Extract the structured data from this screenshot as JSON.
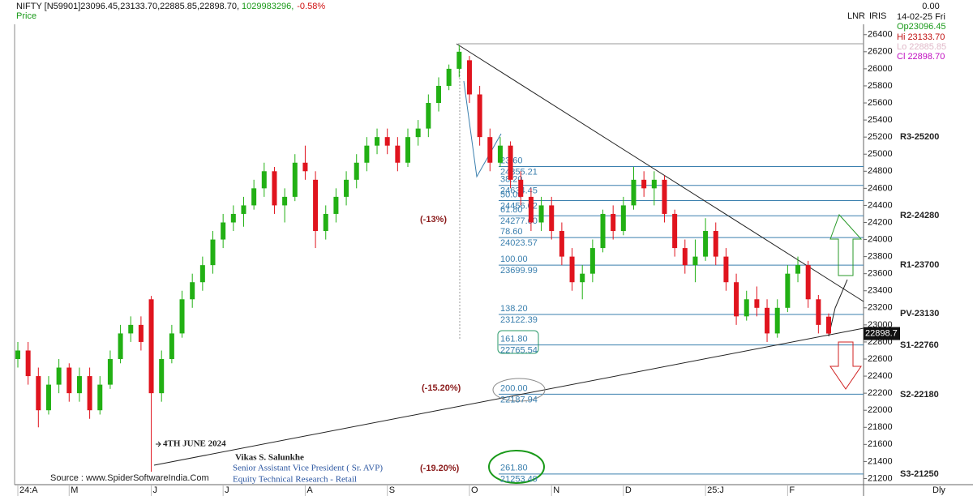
{
  "chart_data": {
    "type": "candlestick",
    "header": {
      "quote": "NIFTY [N59901]23096.45,23133.70,22885.85,22898.70,",
      "volume": "1029983296,",
      "change": "-0.58%",
      "sub": "Price"
    },
    "info": {
      "value": "0.00",
      "date": "14-02-25 Fri",
      "open": "Op23096.45",
      "high": "Hi 23133.70",
      "low": "Lo 22885.85",
      "close": "Cl 22898.70"
    },
    "axis_tags": [
      "LNR",
      "IRIS"
    ],
    "period": "Dly",
    "ylim": [
      21100,
      26730
    ],
    "yticks": [
      21200,
      21400,
      21600,
      21800,
      22000,
      22200,
      22400,
      22600,
      22800,
      23000,
      23200,
      23400,
      23600,
      23800,
      24000,
      24200,
      24400,
      24600,
      24800,
      25000,
      25200,
      25400,
      25600,
      25800,
      26000,
      26200,
      26400
    ],
    "categories": [
      "24:A",
      null,
      null,
      null,
      null,
      "M",
      null,
      null,
      null,
      null,
      null,
      null,
      null,
      "J",
      null,
      null,
      null,
      null,
      null,
      null,
      "J",
      null,
      null,
      null,
      null,
      null,
      null,
      null,
      "A",
      null,
      null,
      null,
      null,
      null,
      null,
      null,
      "S",
      null,
      null,
      null,
      null,
      null,
      null,
      null,
      "O",
      null,
      null,
      null,
      null,
      null,
      null,
      null,
      "N",
      null,
      null,
      null,
      null,
      null,
      null,
      "D",
      null,
      null,
      null,
      null,
      null,
      null,
      null,
      "25:J",
      null,
      null,
      null,
      null,
      null,
      null,
      null,
      "F",
      null,
      null,
      null,
      null
    ],
    "candles": [
      [
        22600,
        22800,
        22500,
        22700
      ],
      [
        22700,
        22800,
        22300,
        22400
      ],
      [
        22400,
        22500,
        21800,
        22000
      ],
      [
        22000,
        22400,
        21950,
        22300
      ],
      [
        22300,
        22600,
        22200,
        22500
      ],
      [
        22500,
        22550,
        22100,
        22200
      ],
      [
        22200,
        22500,
        22100,
        22400
      ],
      [
        22400,
        22500,
        21900,
        22000
      ],
      [
        22000,
        22400,
        21950,
        22300
      ],
      [
        22300,
        22700,
        22250,
        22600
      ],
      [
        22600,
        23000,
        22550,
        22900
      ],
      [
        22900,
        23100,
        22800,
        23000
      ],
      [
        23000,
        23100,
        22700,
        22800
      ],
      [
        23300,
        23340,
        21280,
        22200
      ],
      [
        22200,
        22700,
        22100,
        22600
      ],
      [
        22600,
        23000,
        22550,
        22900
      ],
      [
        22900,
        23400,
        22850,
        23300
      ],
      [
        23300,
        23600,
        23200,
        23500
      ],
      [
        23500,
        23800,
        23400,
        23700
      ],
      [
        23700,
        24100,
        23600,
        24000
      ],
      [
        24000,
        24300,
        23900,
        24200
      ],
      [
        24200,
        24400,
        24100,
        24300
      ],
      [
        24300,
        24500,
        24150,
        24400
      ],
      [
        24400,
        24700,
        24350,
        24600
      ],
      [
        24600,
        24900,
        24500,
        24800
      ],
      [
        24800,
        24850,
        24300,
        24400
      ],
      [
        24400,
        24600,
        24200,
        24500
      ],
      [
        24500,
        25000,
        24450,
        24900
      ],
      [
        24900,
        25100,
        24700,
        24800
      ],
      [
        24700,
        24800,
        23900,
        24100
      ],
      [
        24100,
        24400,
        24000,
        24300
      ],
      [
        24300,
        24600,
        24200,
        24500
      ],
      [
        24500,
        24800,
        24400,
        24700
      ],
      [
        24700,
        25000,
        24600,
        24900
      ],
      [
        24900,
        25200,
        24800,
        25100
      ],
      [
        25100,
        25300,
        25000,
        25200
      ],
      [
        25200,
        25300,
        25000,
        25100
      ],
      [
        25100,
        25200,
        24800,
        24900
      ],
      [
        24900,
        25300,
        24850,
        25200
      ],
      [
        25200,
        25400,
        25100,
        25300
      ],
      [
        25300,
        25700,
        25200,
        25600
      ],
      [
        25600,
        25900,
        25500,
        25800
      ],
      [
        25800,
        26050,
        25750,
        26000
      ],
      [
        26000,
        26280,
        25900,
        26200
      ],
      [
        26100,
        26150,
        25600,
        25700
      ],
      [
        25700,
        25800,
        25100,
        25200
      ],
      [
        25200,
        25300,
        24800,
        24900
      ],
      [
        24900,
        25200,
        24850,
        25100
      ],
      [
        25100,
        25150,
        24600,
        24700
      ],
      [
        24700,
        24800,
        24400,
        24500
      ],
      [
        24500,
        24600,
        24100,
        24200
      ],
      [
        24200,
        24500,
        24100,
        24400
      ],
      [
        24400,
        24500,
        24000,
        24100
      ],
      [
        24100,
        24200,
        23700,
        23800
      ],
      [
        23800,
        23900,
        23400,
        23500
      ],
      [
        23500,
        23700,
        23300,
        23600
      ],
      [
        23600,
        24000,
        23500,
        23900
      ],
      [
        23900,
        24350,
        23850,
        24300
      ],
      [
        24300,
        24400,
        24000,
        24100
      ],
      [
        24100,
        24500,
        24050,
        24400
      ],
      [
        24400,
        24850,
        24350,
        24700
      ],
      [
        24700,
        24800,
        24500,
        24600
      ],
      [
        24600,
        24800,
        24400,
        24700
      ],
      [
        24700,
        24750,
        24200,
        24300
      ],
      [
        24300,
        24350,
        23800,
        23900
      ],
      [
        23900,
        24000,
        23600,
        23700
      ],
      [
        23700,
        24000,
        23500,
        23800
      ],
      [
        23800,
        24250,
        23750,
        24100
      ],
      [
        24100,
        24200,
        23700,
        23800
      ],
      [
        23800,
        23900,
        23400,
        23500
      ],
      [
        23500,
        23600,
        23000,
        23100
      ],
      [
        23100,
        23400,
        23050,
        23300
      ],
      [
        23300,
        23450,
        23100,
        23200
      ],
      [
        23200,
        23300,
        22800,
        22900
      ],
      [
        22900,
        23300,
        22850,
        23200
      ],
      [
        23200,
        23700,
        23150,
        23600
      ],
      [
        23600,
        23800,
        23500,
        23700
      ],
      [
        23700,
        23750,
        23200,
        23300
      ],
      [
        23300,
        23350,
        22900,
        23000
      ],
      [
        23096.45,
        23133.7,
        22885.85,
        22898.7
      ]
    ],
    "up_color": "#22b014",
    "down_color": "#e0141e",
    "last_price": 22898.7,
    "fib": {
      "ratios": [
        "23.60",
        "38.20",
        "50.00",
        "61.80",
        "78.60",
        "100.00",
        "138.20",
        "161.80",
        "200.00",
        "261.80"
      ],
      "values": [
        24855.21,
        24634.45,
        24456.02,
        24277.6,
        24023.57,
        23699.99,
        23122.39,
        22765.54,
        22187.94,
        21253.49
      ],
      "value_labels": [
        "24855.21",
        "24634.45",
        "24456.02",
        "24277.60",
        "24023.57",
        "23699.99",
        "23122.39",
        "22765.54",
        "22187.94",
        "21253.49"
      ],
      "color": "#3a7fae"
    },
    "pivots": {
      "labels": [
        "R3-25200",
        "R2-24280",
        "R1-23700",
        "PV-23130",
        "S1-22760",
        "S2-22180",
        "S3-21250"
      ],
      "values": [
        25200,
        24280,
        23700,
        23130,
        22760,
        22180,
        21250
      ]
    },
    "annotations": {
      "drop13": "(-13%)",
      "drop15": "(-15.20%)",
      "drop19": "(-19.20%)",
      "june": "4TH JUNE 2024",
      "author": "Vikas S. Salunkhe",
      "role": "Senior Assistant Vice President ( Sr. AVP)",
      "dept": "Equity Technical Research - Retail",
      "source": "Source : www.SpiderSoftwareIndia.Com"
    }
  }
}
